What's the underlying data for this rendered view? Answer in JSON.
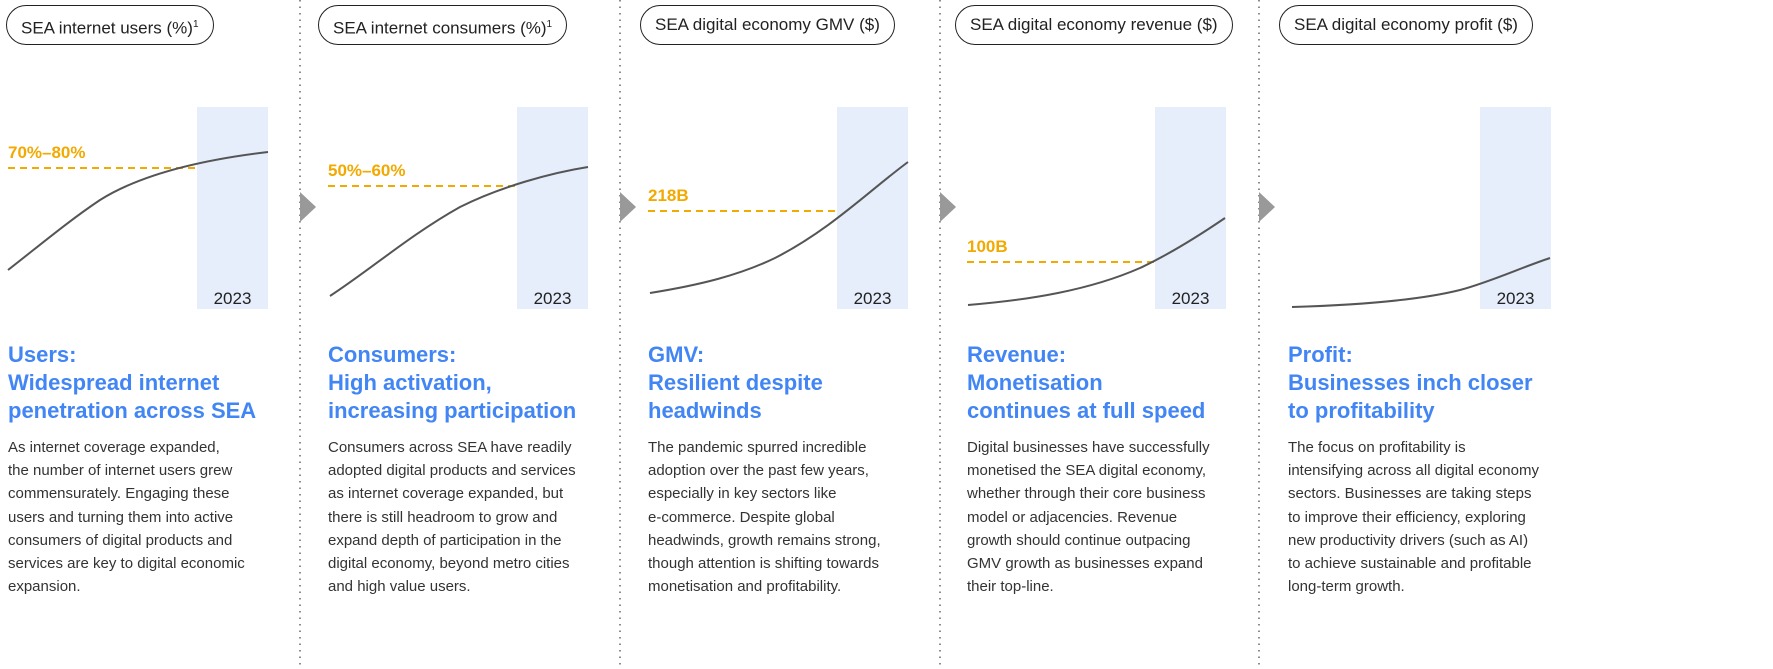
{
  "panels": [
    {
      "pill": "SEA internet users (%)",
      "note": "1",
      "value": "70%–80%",
      "year": "2023",
      "heading": [
        "Users:",
        "Widespread internet",
        "penetration across SEA"
      ],
      "body": [
        "As internet coverage expanded,",
        "the number of internet users grew",
        "commensurately. Engaging these",
        "users and turning them into active",
        "consumers of digital products and",
        "services are key to digital economic",
        "expansion."
      ]
    },
    {
      "pill": "SEA internet consumers (%)",
      "note": "1",
      "value": "50%–60%",
      "year": "2023",
      "heading": [
        "Consumers:",
        "High activation,",
        "increasing participation"
      ],
      "body": [
        "Consumers across SEA have readily",
        "adopted digital products and services",
        "as internet coverage expanded, but",
        "there is still headroom to grow and",
        "expand depth of participation in the",
        "digital economy, beyond metro cities",
        "and high value users."
      ]
    },
    {
      "pill": "SEA digital economy GMV ($)",
      "value": "218B",
      "year": "2023",
      "heading": [
        "GMV:",
        "Resilient despite",
        "headwinds"
      ],
      "body": [
        "The pandemic spurred incredible",
        "adoption over the past few years,",
        "especially in key sectors like",
        "e-commerce. Despite global",
        "headwinds, growth remains strong,",
        "though attention is shifting towards",
        "monetisation and profitability."
      ]
    },
    {
      "pill": "SEA digital economy revenue ($)",
      "value": "100B",
      "year": "2023",
      "heading": [
        "Revenue:",
        "Monetisation",
        "continues at full speed"
      ],
      "body": [
        "Digital businesses have successfully",
        "monetised the SEA digital economy,",
        "whether through their core business",
        "model or adjacencies. Revenue",
        "growth should continue outpacing",
        "GMV growth as businesses expand",
        "their top-line."
      ]
    },
    {
      "pill": "SEA digital economy profit ($)",
      "year": "2023",
      "heading": [
        "Profit:",
        "Businesses inch closer",
        "to profitability"
      ],
      "body": [
        "The focus on profitability is",
        "intensifying across all digital economy",
        "sectors. Businesses are taking steps",
        "to improve their efficiency, exploring",
        "new productivity drivers (such as AI)",
        "to achieve sustainable and profitable",
        "long-term growth."
      ]
    }
  ]
}
